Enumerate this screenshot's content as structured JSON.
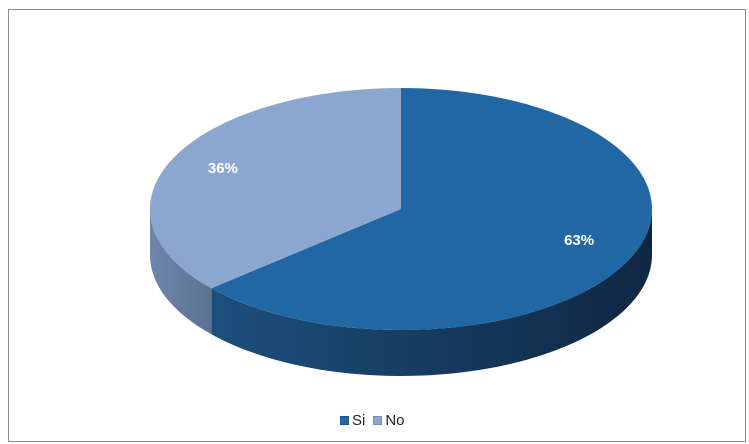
{
  "caption": "",
  "chart_data": {
    "type": "pie",
    "title": "",
    "slices": [
      {
        "label": "Si",
        "value": 63,
        "display": "63%",
        "color": "#2167a4",
        "side_dark": "#122f4c",
        "side_light": "#1c5180"
      },
      {
        "label": "No",
        "value": 36,
        "display": "36%",
        "color": "#8ba7cf",
        "side_dark": "#5e7597",
        "side_light": "#7a93b9"
      }
    ],
    "legend_position": "bottom",
    "style": "3d-pie"
  }
}
